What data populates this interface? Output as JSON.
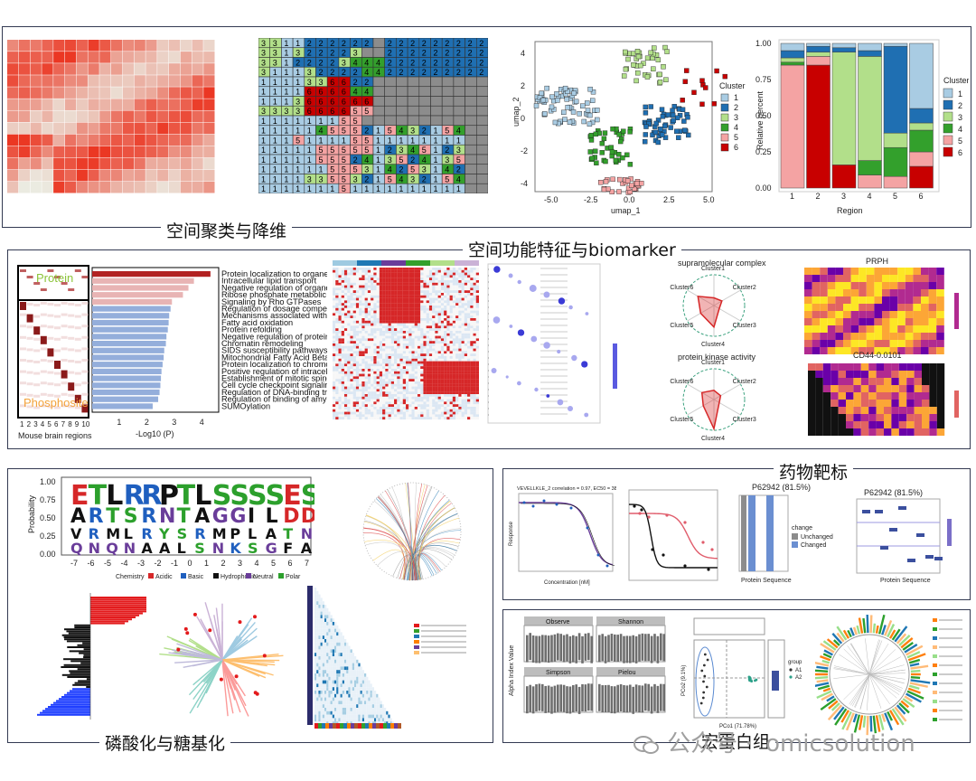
{
  "sections": {
    "clustering": {
      "title": "空间聚类与降维"
    },
    "function": {
      "title": "空间功能特征与biomarker"
    },
    "phospho": {
      "title": "磷酸化与糖基化"
    },
    "drug": {
      "title": "药物靶标"
    },
    "meta": {
      "title": "宏蛋白组"
    }
  },
  "watermark": {
    "prefix": "公众号 ·",
    "name": "omicsolution"
  },
  "clustering": {
    "umap": {
      "xlabel": "umap_1",
      "ylabel": "umap_2",
      "xticks": [
        "-5.0",
        "-2.5",
        "0.0",
        "2.5",
        "5.0"
      ],
      "yticks": [
        "-4",
        "-2",
        "0",
        "2",
        "4"
      ],
      "legend_title": "Cluster",
      "clusters": [
        "1",
        "2",
        "3",
        "4",
        "5",
        "6"
      ]
    },
    "stacked": {
      "xlabel": "Region",
      "ylabel": "Relative percent",
      "xticks": [
        "1",
        "2",
        "3",
        "4",
        "5",
        "6"
      ],
      "yticks": [
        "0.00",
        "0.25",
        "0.50",
        "0.75",
        "1.00"
      ],
      "legend_title": "Cluster",
      "clusters": [
        "1",
        "2",
        "3",
        "4",
        "5",
        "6"
      ]
    },
    "grid_rows": [
      "3311222222",
      "331322223",
      "33122223444",
      "31113222244",
      "1111336622",
      "1111666644",
      "1113666666",
      "3333666655",
      "111111155",
      "111114555",
      "1115111155",
      "1111155555",
      "11111555",
      "11111155",
      "11113355",
      "11111115"
    ],
    "cluster_colors": [
      "#a9cce3",
      "#1f6fb2",
      "#b2df8a",
      "#33a02c",
      "#f4a3a3",
      "#c80000"
    ]
  },
  "function": {
    "protein_label": "Protein",
    "phosphosite_label": "Phosphosite",
    "region_axis": "Mouse brain regions",
    "region_ticks": [
      "1",
      "2",
      "3",
      "4",
      "5",
      "6",
      "7",
      "8",
      "9",
      "10"
    ],
    "go_xlabel": "-Log10 (P)",
    "go_xticks": [
      "1",
      "2",
      "3",
      "4"
    ],
    "go_terms": [
      "Protein localization to organelle",
      "Intracellular lipid transport",
      "Negative regulation of organelle orga",
      "Ribose phosphate metabolic process",
      "Signaling by Rho GTPases",
      "Regulation of dosage compensation",
      "Mechanisms associated with pluripot",
      "Fatty acid oxidation",
      "Protein refolding",
      "Negative regulation of protein ubiquit",
      "Chromatin remodeling",
      "SIDS susceptibility pathways",
      "Mitochondrial Fatty Acid Beta-Oxidati",
      "Protein localization to chromosome",
      "Positive regulation of intracellular tra",
      "Establishment of mitotic spindle orier",
      "Cell cycle checkpoint signaling",
      "Regulation of DNA-binding transcripti",
      "Regulation of binding of amyloid-beta",
      "SUMOylation"
    ],
    "radar1_title": "supramolecular complex",
    "radar2_title": "protein kinase activity",
    "radar_axes": [
      "Cluster1",
      "Cluster2",
      "Cluster3",
      "Cluster4",
      "Cluster5",
      "Cluster6"
    ],
    "heat1_title": "PRPH",
    "heat2_title": "CD44-0.0101"
  },
  "phospho": {
    "ylabel": "Probability",
    "yticks": [
      "1.00",
      "0.75",
      "0.50",
      "0.25",
      "0.00"
    ],
    "xticks": [
      "-7",
      "-6",
      "-5",
      "-4",
      "-3",
      "-2",
      "-1",
      "0",
      "1",
      "2",
      "3",
      "4",
      "5",
      "6",
      "7"
    ],
    "legend_label": "Chemistry",
    "legend": [
      "Acidic",
      "Basic",
      "Hydrophobic",
      "Neutral",
      "Polar"
    ]
  },
  "drug": {
    "curve1_title": "VEVELLKLE_2 correlation = 0.97, EC50 = 3831863",
    "curve1_xlabel": "Concentration [nM]",
    "curve1_ylabel": "Response",
    "bar_title": "P62942 (81.5%)",
    "bar_xlabel": "Protein Sequence",
    "bar_legend_title": "change",
    "bar_legend": [
      "Unchanged",
      "Changed"
    ],
    "dot_title": "P62942 (81.5%)",
    "dot_xlabel": "Protein Sequence"
  },
  "meta": {
    "alpha_ylabel": "Alpha Index Value",
    "alpha_panels": [
      "Observe",
      "Shannon",
      "Simpson",
      "Pielou"
    ],
    "pcoa_xlabel": "PCo1 (71.78%)",
    "pcoa_ylabel": "PCo2 (9.1%)",
    "pcoa_group_label": "group",
    "pcoa_groups": [
      "A1",
      "A2"
    ]
  }
}
